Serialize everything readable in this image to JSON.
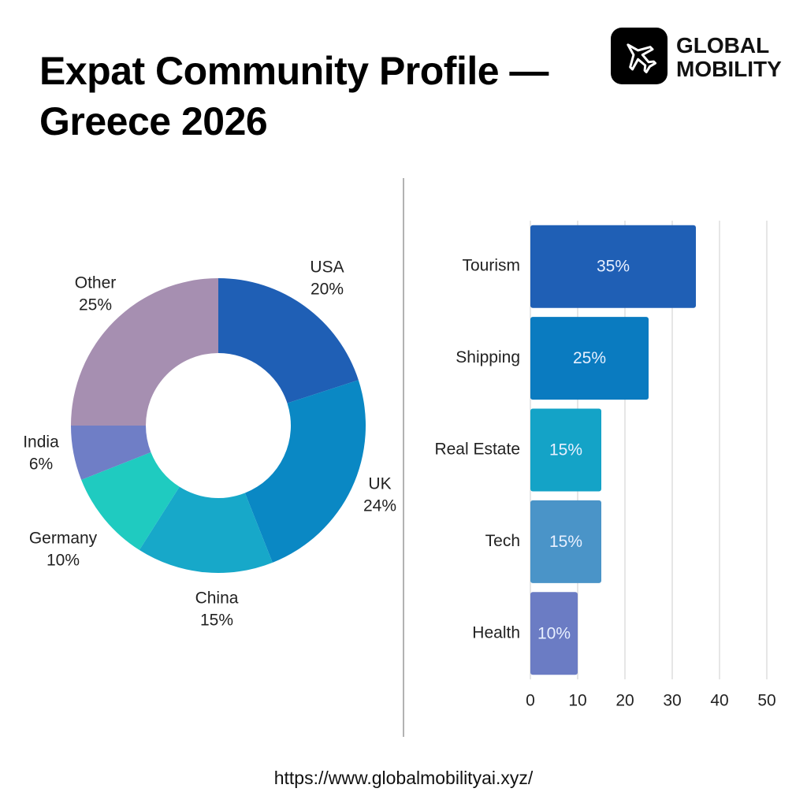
{
  "header": {
    "title": "Expat Community Profile — Greece 2026",
    "logo": [
      "GLOBAL",
      "MOBILITY"
    ]
  },
  "footer": {
    "url": "https://www.globalmobilityai.xyz/"
  },
  "chart_data": [
    {
      "type": "donut",
      "categories": [
        "USA",
        "UK",
        "China",
        "Germany",
        "India",
        "Other"
      ],
      "values": [
        20,
        24,
        15,
        10,
        6,
        25
      ],
      "value_labels": [
        "20%",
        "24%",
        "15%",
        "10%",
        "6%",
        "25%"
      ],
      "colors": [
        "#1f5fb5",
        "#0a88c4",
        "#17a8c9",
        "#1fcbc0",
        "#6f7ec6",
        "#a68fb1"
      ]
    },
    {
      "type": "bar",
      "orientation": "horizontal",
      "categories": [
        "Tourism",
        "Shipping",
        "Real Estate",
        "Tech",
        "Health"
      ],
      "values": [
        35,
        25,
        15,
        15,
        10
      ],
      "value_labels": [
        "35%",
        "25%",
        "15%",
        "15%",
        "10%"
      ],
      "colors": [
        "#1f5fb5",
        "#0a7bc0",
        "#14a3c7",
        "#4a94c8",
        "#6b7cc4"
      ],
      "xlim": [
        0,
        50
      ],
      "xticks": [
        0,
        10,
        20,
        30,
        40,
        50
      ],
      "grid": true
    }
  ]
}
